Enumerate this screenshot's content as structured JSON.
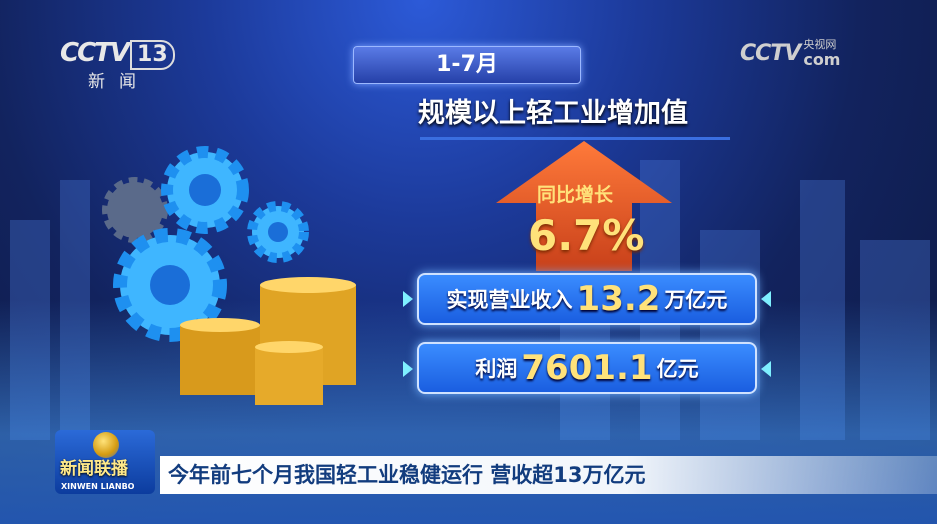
{
  "logos": {
    "channel": {
      "brand": "CCTV",
      "number": "13",
      "subtitle": "新闻"
    },
    "watermark": {
      "brand": "CCTV",
      "cn": "央视网",
      "com": "com"
    }
  },
  "graphic": {
    "period": "1-7月",
    "title": "规模以上轻工业增加值",
    "growth_label": "同比增长",
    "growth_value": "6.7%",
    "revenue": {
      "label": "实现营业收入",
      "value": "13.2",
      "unit": "万亿元"
    },
    "profit": {
      "label": "利润",
      "value": "7601.1",
      "unit": "亿元"
    }
  },
  "lower_third": {
    "program_cn": "新闻联播",
    "program_en": "XINWEN LIANBO",
    "headline": "今年前七个月我国轻工业稳健运行 营收超13万亿元"
  },
  "colors": {
    "arrow": "#e8562a",
    "highlight": "#ffe27a",
    "box": "#2a78f0",
    "headline_text": "#123c7e"
  }
}
